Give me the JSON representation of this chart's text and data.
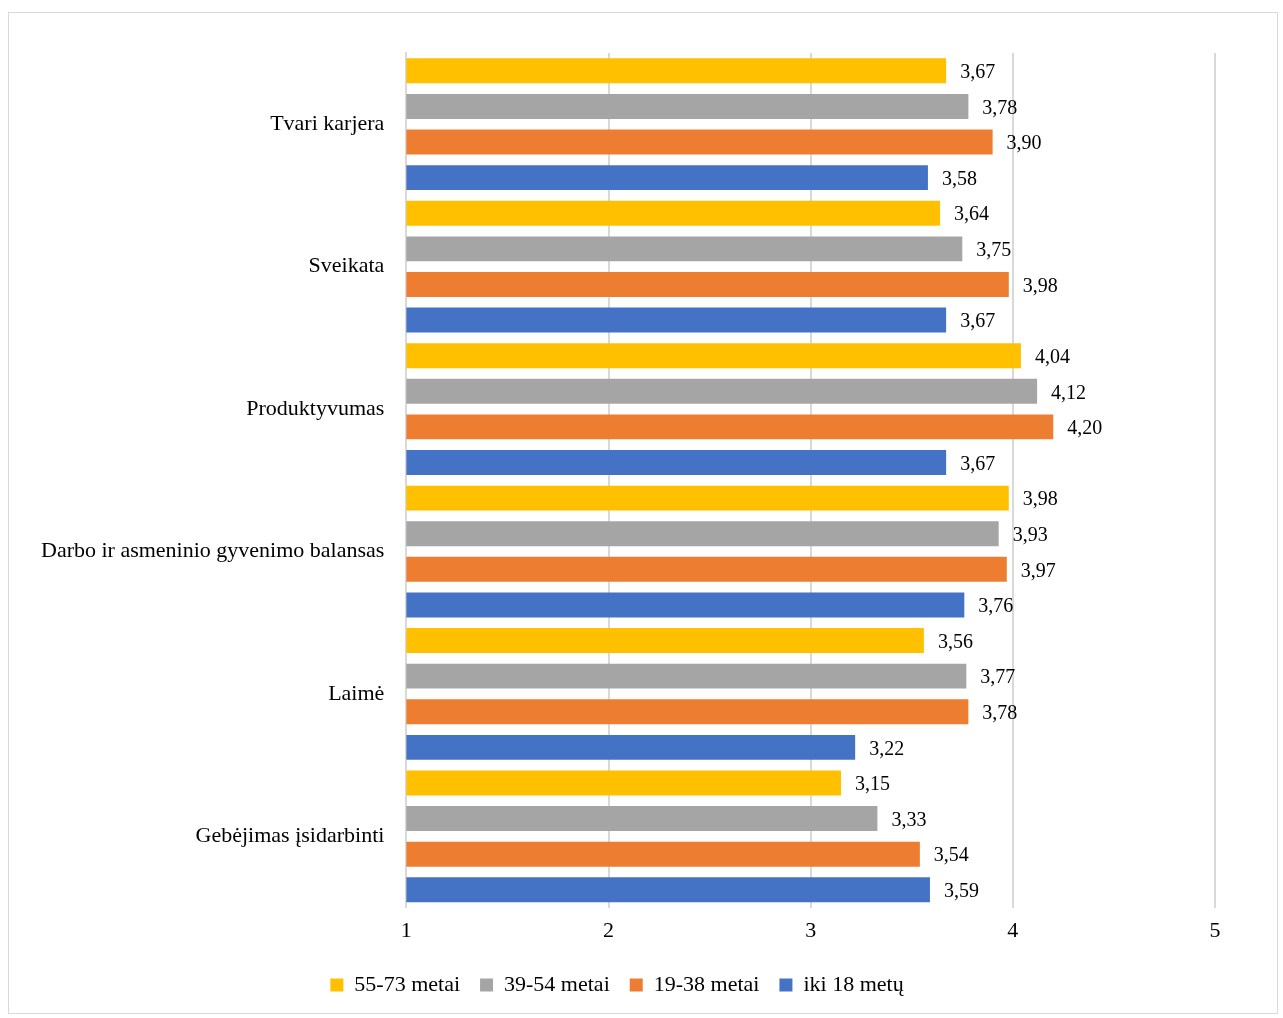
{
  "chart_data": {
    "type": "bar",
    "orientation": "horizontal",
    "categories": [
      "Tvari karjera",
      "Sveikata",
      "Produktyvumas",
      "Darbo ir asmeninio gyvenimo balansas",
      "Laimė",
      "Gebėjimas įsidarbinti"
    ],
    "series": [
      {
        "name": "55-73 metai",
        "color": "#ffc000",
        "values": [
          3.67,
          3.64,
          4.04,
          3.98,
          3.56,
          3.15
        ],
        "value_labels": [
          "3,67",
          "3,64",
          "4,04",
          "3,98",
          "3,56",
          "3,15"
        ]
      },
      {
        "name": "39-54 metai",
        "color": "#a5a5a5",
        "values": [
          3.78,
          3.75,
          4.12,
          3.93,
          3.77,
          3.33
        ],
        "value_labels": [
          "3,78",
          "3,75",
          "4,12",
          "3,93",
          "3,77",
          "3,33"
        ]
      },
      {
        "name": "19-38 metai",
        "color": "#ed7d31",
        "values": [
          3.9,
          3.98,
          4.2,
          3.97,
          3.78,
          3.54
        ],
        "value_labels": [
          "3,90",
          "3,98",
          "4,20",
          "3,97",
          "3,78",
          "3,54"
        ]
      },
      {
        "name": "iki 18 metų",
        "color": "#4472c4",
        "values": [
          3.58,
          3.67,
          3.67,
          3.76,
          3.22,
          3.59
        ],
        "value_labels": [
          "3,58",
          "3,67",
          "3,67",
          "3,76",
          "3,22",
          "3,59"
        ]
      }
    ],
    "xlim": [
      1,
      5
    ],
    "xticks": [
      1,
      2,
      3,
      4,
      5
    ],
    "grid": "x",
    "legend": "bottom"
  }
}
